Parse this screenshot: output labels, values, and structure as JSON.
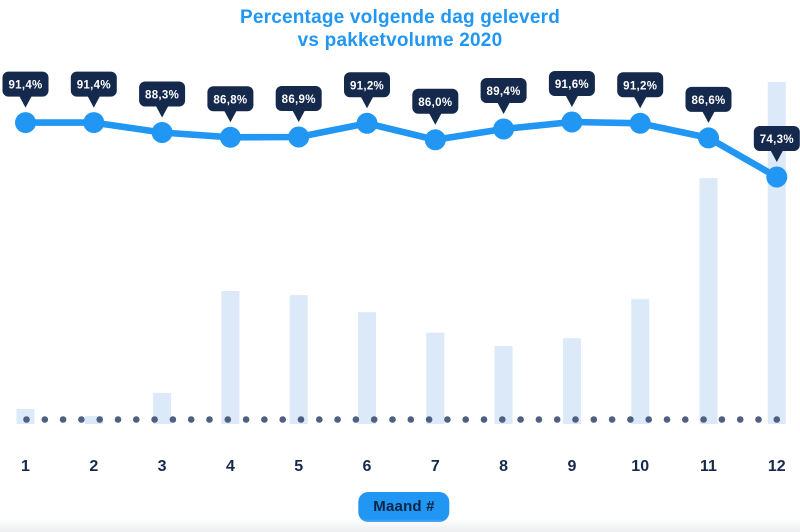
{
  "chart_data": {
    "type": "combo-line-bar",
    "title": "Percentage volgende dag geleverd vs pakketvolume 2020",
    "title_lines": [
      "Percentage volgende dag geleverd",
      "vs pakketvolume 2020"
    ],
    "xlabel": "Maand #",
    "categories": [
      "1",
      "2",
      "3",
      "4",
      "5",
      "6",
      "7",
      "8",
      "9",
      "10",
      "11",
      "12"
    ],
    "series": [
      {
        "name": "Percentage volgende dag geleverd",
        "type": "line",
        "unit": "%",
        "values": [
          91.4,
          91.4,
          88.3,
          86.8,
          86.9,
          91.2,
          86.0,
          89.4,
          91.6,
          91.2,
          86.6,
          74.3
        ],
        "labels": [
          "91,4%",
          "91,4%",
          "88,3%",
          "86,8%",
          "86,9%",
          "91,2%",
          "86,0%",
          "89,4%",
          "91,6%",
          "91,2%",
          "86,6%",
          "74,3%"
        ],
        "color": "#2196f3",
        "marker": "circle",
        "data_labels": "dark tooltip badges above each point"
      },
      {
        "name": "Pakketvolume 2020",
        "type": "bar",
        "unit": "relative volume (max month = 100, estimated from bar heights; no value labels shown)",
        "values": [
          4.4,
          2.3,
          9.1,
          38.9,
          37.7,
          32.7,
          26.7,
          22.8,
          25.1,
          36.5,
          71.9,
          100
        ],
        "color": "#dbe9f8"
      }
    ],
    "legend": false,
    "grid": false,
    "y_axis_visible": false,
    "baseline_style": "dotted row of slate dots along x-axis"
  },
  "colors": {
    "title": "#2196f3",
    "line": "#2196f3",
    "marker": "#2196f3",
    "bar": "#dbe9f8",
    "tooltip_bg": "#15294d",
    "tooltip_text": "#ffffff",
    "axis_label": "#15294d",
    "dotted_line": "#4e5f82",
    "xlabel_badge_bg": "#2196f3",
    "xlabel_badge_text": "#0d2444"
  }
}
